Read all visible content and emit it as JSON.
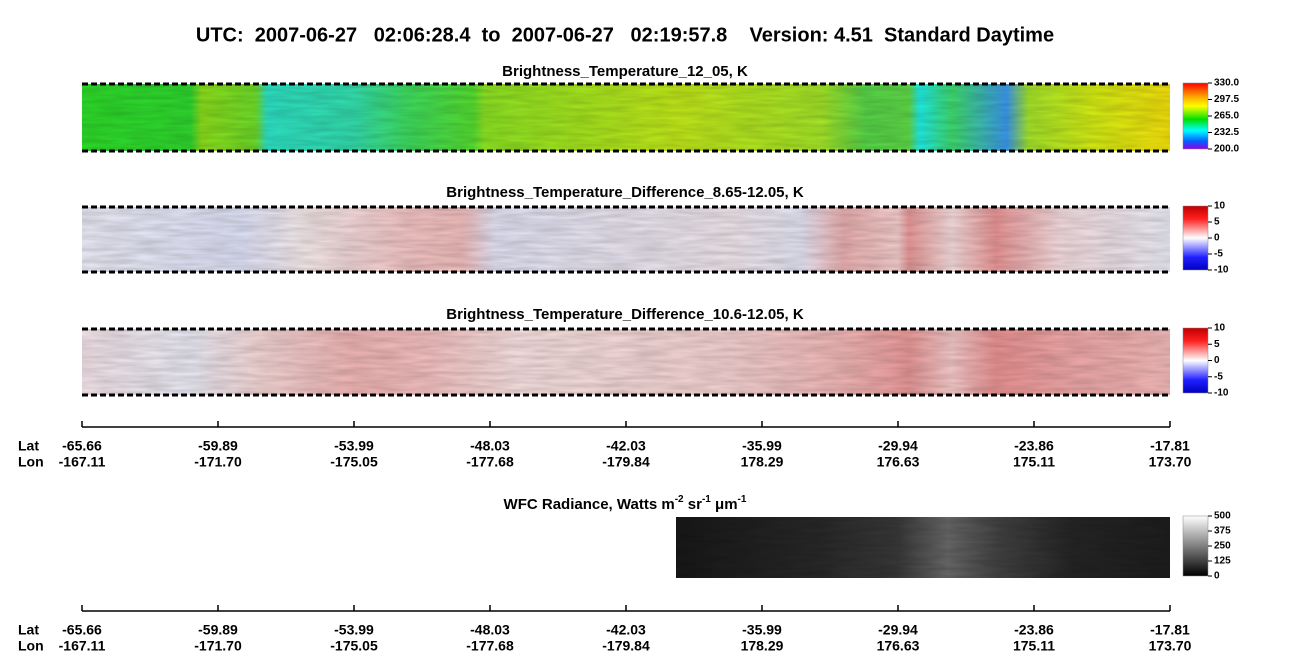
{
  "header": {
    "title": "UTC:  2007-06-27   02:06:28.4  to  2007-06-27   02:19:57.8    Version: 4.51  Standard Daytime"
  },
  "panels": [
    {
      "title": "Brightness_Temperature_12_05, K",
      "colorbar": [
        "330.0",
        "297.5",
        "265.0",
        "232.5",
        "200.0"
      ]
    },
    {
      "title": "Brightness_Temperature_Difference_8.65-12.05, K",
      "colorbar": [
        "10",
        "5",
        "0",
        "-5",
        "-10"
      ]
    },
    {
      "title": "Brightness_Temperature_Difference_10.6-12.05, K",
      "colorbar": [
        "10",
        "5",
        "0",
        "-5",
        "-10"
      ]
    },
    {
      "title_parts": [
        "WFC Radiance, Watts m",
        "-2",
        " sr",
        "-1",
        " μm",
        "-1"
      ],
      "colorbar": [
        "500",
        "375",
        "250",
        "125",
        "0"
      ]
    }
  ],
  "axes": [
    {
      "lat_label": "Lat",
      "lon_label": "Lon",
      "lat": [
        "-65.66",
        "-59.89",
        "-53.99",
        "-48.03",
        "-42.03",
        "-35.99",
        "-29.94",
        "-23.86",
        "-17.81"
      ],
      "lon": [
        "-167.11",
        "-171.70",
        "-175.05",
        "-177.68",
        "-179.84",
        "178.29",
        "176.63",
        "175.11",
        "173.70"
      ]
    },
    {
      "lat_label": "Lat",
      "lon_label": "Lon",
      "lat": [
        "-65.66",
        "-59.89",
        "-53.99",
        "-48.03",
        "-42.03",
        "-35.99",
        "-29.94",
        "-23.86",
        "-17.81"
      ],
      "lon": [
        "-167.11",
        "-171.70",
        "-175.05",
        "-177.68",
        "-179.84",
        "178.29",
        "176.63",
        "175.11",
        "173.70"
      ]
    }
  ]
}
